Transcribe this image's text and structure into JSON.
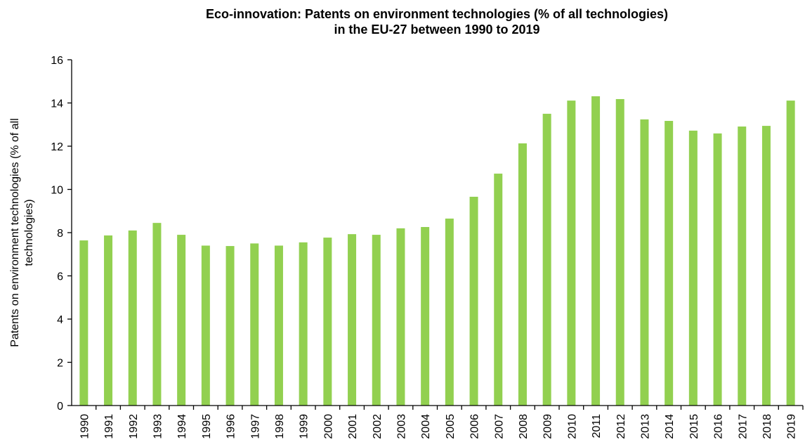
{
  "chart_data": {
    "type": "bar",
    "title": [
      "Eco-innovation: Patents on environment technologies (% of all technologies)",
      "in the EU-27 between 1990 to 2019"
    ],
    "ylabel": [
      "Patents on environment technologies (% of all",
      "technologies)"
    ],
    "categories": [
      "1990",
      "1991",
      "1992",
      "1993",
      "1994",
      "1995",
      "1996",
      "1997",
      "1998",
      "1999",
      "2000",
      "2001",
      "2002",
      "2003",
      "2004",
      "2005",
      "2006",
      "2007",
      "2008",
      "2009",
      "2010",
      "2011",
      "2012",
      "2013",
      "2014",
      "2015",
      "2016",
      "2017",
      "2018",
      "2019"
    ],
    "values": [
      7.64,
      7.87,
      8.1,
      8.45,
      7.9,
      7.4,
      7.38,
      7.5,
      7.4,
      7.55,
      7.77,
      7.93,
      7.9,
      8.2,
      8.26,
      8.65,
      9.66,
      10.73,
      12.13,
      13.5,
      14.11,
      14.31,
      14.18,
      13.24,
      13.17,
      12.72,
      12.59,
      12.91,
      12.94,
      14.11
    ],
    "color": "#92d050",
    "ylim": [
      0,
      16
    ],
    "yticks": [
      0,
      2,
      4,
      6,
      8,
      10,
      12,
      14,
      16
    ],
    "grid": false
  }
}
